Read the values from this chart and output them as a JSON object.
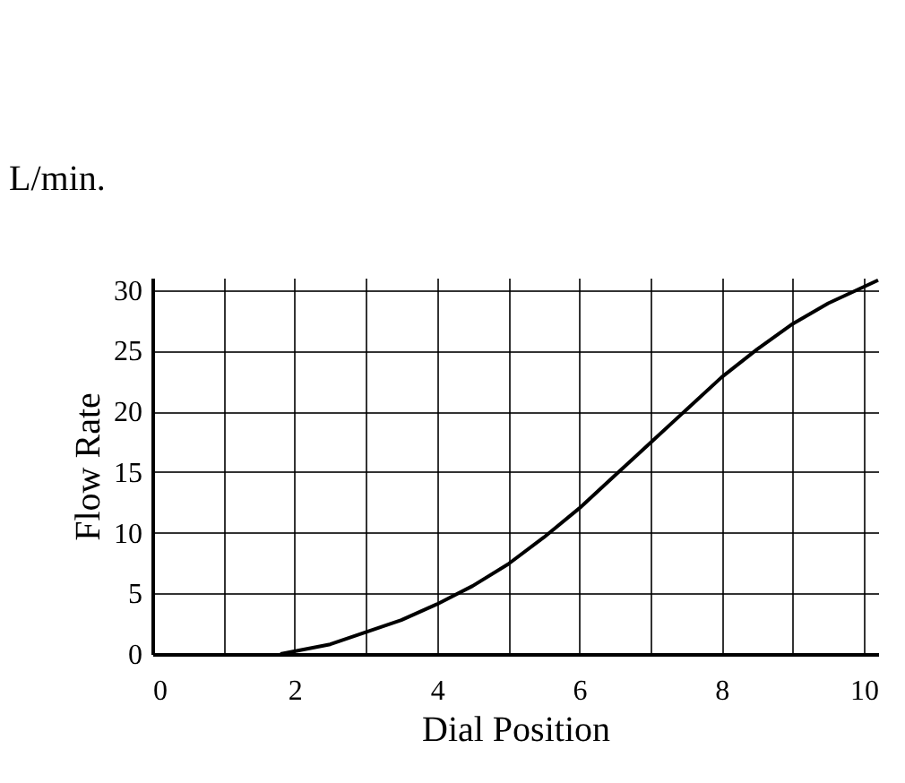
{
  "chart_data": {
    "type": "line",
    "x": [
      1.8,
      2.5,
      3,
      3.5,
      4,
      4.5,
      5,
      5.5,
      6,
      6.5,
      7,
      7.5,
      8,
      8.5,
      9,
      9.5,
      10.2
    ],
    "series": [
      {
        "color": "#000000",
        "values": [
          0,
          0.8,
          1.8,
          2.8,
          4.1,
          5.6,
          7.4,
          9.6,
          12.0,
          14.7,
          17.4,
          20.1,
          22.8,
          25.1,
          27.2,
          28.9,
          30.8
        ]
      }
    ],
    "xlabel": "Dial Position",
    "ylabel": "Flow Rate",
    "annotations": [
      "L/min."
    ],
    "xlim": [
      0,
      10.2
    ],
    "ylim": [
      0,
      31
    ],
    "xticks": [
      0,
      {
        "value": 1,
        "label": null
      },
      2,
      {
        "value": 3,
        "label": null
      },
      4,
      {
        "value": 5,
        "label": null
      },
      6,
      {
        "value": 7,
        "label": null
      },
      8,
      {
        "value": 9,
        "label": null
      },
      10
    ],
    "yticks": [
      0,
      5,
      10,
      15,
      20,
      25,
      30
    ],
    "grid": true,
    "legend": false,
    "marker": "none",
    "line_style": "solid"
  }
}
